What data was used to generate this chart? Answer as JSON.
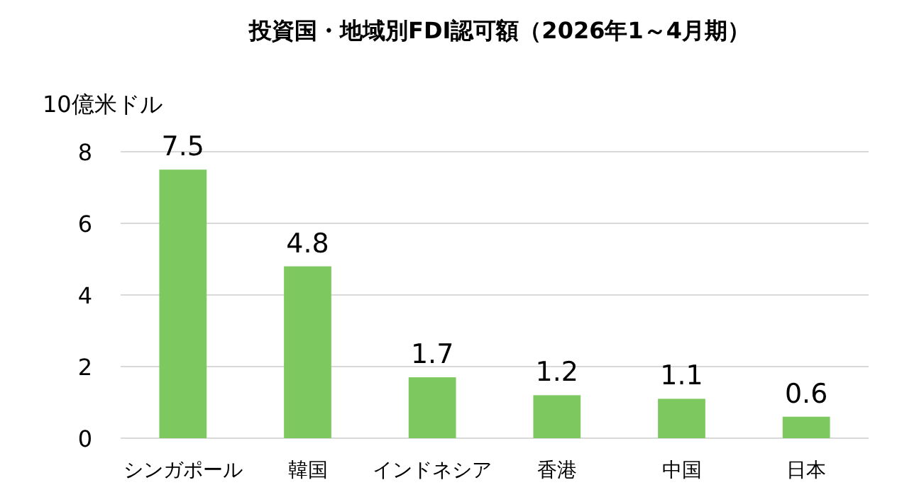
{
  "chart_data": {
    "type": "bar",
    "title": "投資国・地域別FDI認可額（2026年1～4月期）",
    "ylabel": "10億米ドル",
    "categories": [
      "シンガポール",
      "韓国",
      "インドネシア",
      "香港",
      "中国",
      "日本"
    ],
    "values": [
      7.5,
      4.8,
      1.7,
      1.2,
      1.1,
      0.6
    ],
    "color": "#7ec95f",
    "ylim": [
      0,
      8
    ],
    "yticks": [
      0,
      2,
      4,
      6,
      8
    ],
    "grid": "y",
    "data_labels": true
  }
}
